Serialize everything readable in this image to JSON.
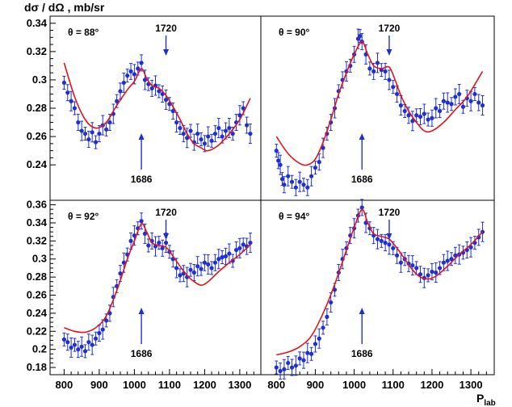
{
  "ylabel": "dσ / dΩ , mb/sr",
  "xlabel_main": "P",
  "xlabel_sub": "lab",
  "colors": {
    "data": "#1f2fd6",
    "fit": "#e0141a",
    "arrow": "#1f2fd6",
    "frame": "#000000"
  },
  "chart_data": [
    {
      "type": "scatter",
      "title": "θ = 88°",
      "xlim": [
        760,
        1360
      ],
      "ylim": [
        0.215,
        0.345
      ],
      "yticks": [
        0.24,
        0.26,
        0.28,
        0.3,
        0.32,
        0.34
      ],
      "ytick_labels": [
        "0.24",
        "0.26",
        "0.28",
        "0.3",
        "0.32",
        "0.34"
      ],
      "xticks": [],
      "xtick_labels": [],
      "annotations": [
        {
          "text": "1720",
          "x": 1090,
          "direction": "down"
        },
        {
          "text": "1686",
          "x": 1020,
          "direction": "up"
        }
      ],
      "fit_points": [
        [
          800,
          0.312
        ],
        [
          830,
          0.288
        ],
        [
          860,
          0.272
        ],
        [
          890,
          0.266
        ],
        [
          920,
          0.27
        ],
        [
          950,
          0.282
        ],
        [
          980,
          0.293
        ],
        [
          1000,
          0.299
        ],
        [
          1020,
          0.308
        ],
        [
          1035,
          0.301
        ],
        [
          1050,
          0.296
        ],
        [
          1070,
          0.294
        ],
        [
          1090,
          0.289
        ],
        [
          1110,
          0.281
        ],
        [
          1130,
          0.272
        ],
        [
          1150,
          0.262
        ],
        [
          1170,
          0.255
        ],
        [
          1190,
          0.252
        ],
        [
          1210,
          0.25
        ],
        [
          1240,
          0.254
        ],
        [
          1270,
          0.262
        ],
        [
          1300,
          0.272
        ],
        [
          1330,
          0.287
        ]
      ],
      "points": [
        [
          800,
          0.298
        ],
        [
          810,
          0.291
        ],
        [
          820,
          0.285
        ],
        [
          830,
          0.28
        ],
        [
          840,
          0.27
        ],
        [
          850,
          0.264
        ],
        [
          860,
          0.262
        ],
        [
          870,
          0.258
        ],
        [
          880,
          0.263
        ],
        [
          890,
          0.256
        ],
        [
          900,
          0.262
        ],
        [
          910,
          0.268
        ],
        [
          920,
          0.265
        ],
        [
          930,
          0.27
        ],
        [
          940,
          0.276
        ],
        [
          950,
          0.285
        ],
        [
          960,
          0.292
        ],
        [
          970,
          0.298
        ],
        [
          980,
          0.303
        ],
        [
          990,
          0.306
        ],
        [
          1000,
          0.304
        ],
        [
          1010,
          0.308
        ],
        [
          1020,
          0.312
        ],
        [
          1030,
          0.3
        ],
        [
          1040,
          0.297
        ],
        [
          1050,
          0.294
        ],
        [
          1060,
          0.296
        ],
        [
          1070,
          0.292
        ],
        [
          1080,
          0.29
        ],
        [
          1090,
          0.286
        ],
        [
          1100,
          0.283
        ],
        [
          1110,
          0.278
        ],
        [
          1120,
          0.27
        ],
        [
          1130,
          0.266
        ],
        [
          1140,
          0.262
        ],
        [
          1150,
          0.259
        ],
        [
          1160,
          0.264
        ],
        [
          1170,
          0.256
        ],
        [
          1180,
          0.262
        ],
        [
          1190,
          0.258
        ],
        [
          1200,
          0.255
        ],
        [
          1210,
          0.26
        ],
        [
          1220,
          0.257
        ],
        [
          1230,
          0.262
        ],
        [
          1240,
          0.266
        ],
        [
          1250,
          0.26
        ],
        [
          1260,
          0.264
        ],
        [
          1270,
          0.266
        ],
        [
          1280,
          0.262
        ],
        [
          1290,
          0.27
        ],
        [
          1300,
          0.275
        ],
        [
          1310,
          0.28
        ],
        [
          1320,
          0.268
        ],
        [
          1330,
          0.262
        ]
      ]
    },
    {
      "type": "scatter",
      "title": "θ = 90°",
      "xlim": [
        760,
        1360
      ],
      "ylim": [
        0.215,
        0.345
      ],
      "yticks": [],
      "ytick_labels": [],
      "xticks": [],
      "xtick_labels": [],
      "annotations": [
        {
          "text": "1720",
          "x": 1090,
          "direction": "down"
        },
        {
          "text": "1686",
          "x": 1020,
          "direction": "up"
        }
      ],
      "fit_points": [
        [
          800,
          0.26
        ],
        [
          830,
          0.248
        ],
        [
          860,
          0.241
        ],
        [
          880,
          0.24
        ],
        [
          900,
          0.244
        ],
        [
          920,
          0.256
        ],
        [
          940,
          0.272
        ],
        [
          960,
          0.29
        ],
        [
          980,
          0.305
        ],
        [
          1000,
          0.318
        ],
        [
          1020,
          0.327
        ],
        [
          1035,
          0.318
        ],
        [
          1050,
          0.31
        ],
        [
          1070,
          0.308
        ],
        [
          1090,
          0.309
        ],
        [
          1105,
          0.3
        ],
        [
          1120,
          0.289
        ],
        [
          1140,
          0.278
        ],
        [
          1160,
          0.27
        ],
        [
          1180,
          0.264
        ],
        [
          1200,
          0.264
        ],
        [
          1230,
          0.27
        ],
        [
          1260,
          0.279
        ],
        [
          1290,
          0.288
        ],
        [
          1330,
          0.306
        ]
      ],
      "points": [
        [
          800,
          0.25
        ],
        [
          805,
          0.243
        ],
        [
          810,
          0.24
        ],
        [
          815,
          0.23
        ],
        [
          820,
          0.226
        ],
        [
          830,
          0.232
        ],
        [
          840,
          0.228
        ],
        [
          850,
          0.224
        ],
        [
          860,
          0.228
        ],
        [
          870,
          0.226
        ],
        [
          880,
          0.224
        ],
        [
          890,
          0.232
        ],
        [
          900,
          0.238
        ],
        [
          910,
          0.242
        ],
        [
          920,
          0.252
        ],
        [
          930,
          0.262
        ],
        [
          940,
          0.27
        ],
        [
          950,
          0.28
        ],
        [
          960,
          0.292
        ],
        [
          970,
          0.3
        ],
        [
          980,
          0.306
        ],
        [
          990,
          0.31
        ],
        [
          1000,
          0.318
        ],
        [
          1010,
          0.329
        ],
        [
          1015,
          0.331
        ],
        [
          1020,
          0.327
        ],
        [
          1030,
          0.318
        ],
        [
          1040,
          0.308
        ],
        [
          1050,
          0.306
        ],
        [
          1060,
          0.312
        ],
        [
          1070,
          0.307
        ],
        [
          1080,
          0.306
        ],
        [
          1090,
          0.3
        ],
        [
          1100,
          0.295
        ],
        [
          1110,
          0.29
        ],
        [
          1120,
          0.282
        ],
        [
          1130,
          0.278
        ],
        [
          1140,
          0.275
        ],
        [
          1150,
          0.271
        ],
        [
          1160,
          0.275
        ],
        [
          1170,
          0.274
        ],
        [
          1180,
          0.276
        ],
        [
          1190,
          0.272
        ],
        [
          1200,
          0.273
        ],
        [
          1210,
          0.28
        ],
        [
          1220,
          0.278
        ],
        [
          1230,
          0.285
        ],
        [
          1240,
          0.284
        ],
        [
          1250,
          0.283
        ],
        [
          1260,
          0.288
        ],
        [
          1270,
          0.29
        ],
        [
          1280,
          0.281
        ],
        [
          1290,
          0.287
        ],
        [
          1300,
          0.285
        ],
        [
          1310,
          0.29
        ],
        [
          1320,
          0.284
        ],
        [
          1330,
          0.282
        ]
      ]
    },
    {
      "type": "scatter",
      "title": "θ = 92°",
      "xlim": [
        760,
        1360
      ],
      "ylim": [
        0.172,
        0.365
      ],
      "yticks": [
        0.18,
        0.2,
        0.22,
        0.24,
        0.26,
        0.28,
        0.3,
        0.32,
        0.34,
        0.36
      ],
      "ytick_labels": [
        "0.18",
        "0.2",
        "0.22",
        "0.24",
        "0.26",
        "0.28",
        "0.3",
        "0.32",
        "0.34",
        "0.36"
      ],
      "xticks": [
        800,
        900,
        1000,
        1100,
        1200,
        1300
      ],
      "xtick_labels": [
        "800",
        "900",
        "1000",
        "1100",
        "1200",
        "1300"
      ],
      "annotations": [
        {
          "text": "1720",
          "x": 1090,
          "direction": "down"
        },
        {
          "text": "1686",
          "x": 1020,
          "direction": "up"
        }
      ],
      "fit_points": [
        [
          800,
          0.224
        ],
        [
          830,
          0.22
        ],
        [
          860,
          0.219
        ],
        [
          890,
          0.224
        ],
        [
          920,
          0.237
        ],
        [
          950,
          0.265
        ],
        [
          980,
          0.3
        ],
        [
          1000,
          0.32
        ],
        [
          1020,
          0.339
        ],
        [
          1035,
          0.33
        ],
        [
          1050,
          0.318
        ],
        [
          1070,
          0.315
        ],
        [
          1090,
          0.313
        ],
        [
          1110,
          0.303
        ],
        [
          1130,
          0.292
        ],
        [
          1150,
          0.282
        ],
        [
          1170,
          0.275
        ],
        [
          1190,
          0.271
        ],
        [
          1210,
          0.275
        ],
        [
          1240,
          0.286
        ],
        [
          1270,
          0.296
        ],
        [
          1300,
          0.305
        ],
        [
          1330,
          0.316
        ]
      ],
      "points": [
        [
          800,
          0.211
        ],
        [
          810,
          0.208
        ],
        [
          820,
          0.202
        ],
        [
          830,
          0.205
        ],
        [
          840,
          0.2
        ],
        [
          850,
          0.203
        ],
        [
          860,
          0.198
        ],
        [
          870,
          0.208
        ],
        [
          880,
          0.205
        ],
        [
          890,
          0.212
        ],
        [
          900,
          0.218
        ],
        [
          910,
          0.222
        ],
        [
          920,
          0.232
        ],
        [
          930,
          0.24
        ],
        [
          940,
          0.258
        ],
        [
          950,
          0.27
        ],
        [
          960,
          0.284
        ],
        [
          970,
          0.296
        ],
        [
          980,
          0.305
        ],
        [
          990,
          0.32
        ],
        [
          1000,
          0.326
        ],
        [
          1010,
          0.334
        ],
        [
          1020,
          0.342
        ],
        [
          1030,
          0.328
        ],
        [
          1040,
          0.315
        ],
        [
          1050,
          0.32
        ],
        [
          1060,
          0.314
        ],
        [
          1070,
          0.318
        ],
        [
          1080,
          0.312
        ],
        [
          1090,
          0.318
        ],
        [
          1100,
          0.308
        ],
        [
          1110,
          0.3
        ],
        [
          1120,
          0.29
        ],
        [
          1130,
          0.282
        ],
        [
          1140,
          0.284
        ],
        [
          1150,
          0.28
        ],
        [
          1160,
          0.288
        ],
        [
          1170,
          0.285
        ],
        [
          1180,
          0.292
        ],
        [
          1190,
          0.289
        ],
        [
          1200,
          0.296
        ],
        [
          1210,
          0.294
        ],
        [
          1220,
          0.29
        ],
        [
          1230,
          0.296
        ],
        [
          1240,
          0.3
        ],
        [
          1250,
          0.302
        ],
        [
          1260,
          0.303
        ],
        [
          1270,
          0.306
        ],
        [
          1280,
          0.298
        ],
        [
          1290,
          0.31
        ],
        [
          1300,
          0.312
        ],
        [
          1310,
          0.316
        ],
        [
          1320,
          0.314
        ],
        [
          1330,
          0.318
        ]
      ]
    },
    {
      "type": "scatter",
      "title": "θ = 94°",
      "xlim": [
        760,
        1360
      ],
      "ylim": [
        0.172,
        0.365
      ],
      "yticks": [],
      "ytick_labels": [],
      "xticks": [
        800,
        900,
        1000,
        1100,
        1200,
        1300
      ],
      "xtick_labels": [
        "800",
        "900",
        "1000",
        "1100",
        "1200",
        "1300"
      ],
      "annotations": [
        {
          "text": "1720",
          "x": 1090,
          "direction": "down"
        },
        {
          "text": "1686",
          "x": 1020,
          "direction": "up"
        }
      ],
      "fit_points": [
        [
          800,
          0.194
        ],
        [
          830,
          0.197
        ],
        [
          860,
          0.203
        ],
        [
          890,
          0.215
        ],
        [
          920,
          0.24
        ],
        [
          950,
          0.272
        ],
        [
          980,
          0.31
        ],
        [
          1000,
          0.335
        ],
        [
          1020,
          0.355
        ],
        [
          1035,
          0.34
        ],
        [
          1050,
          0.328
        ],
        [
          1070,
          0.325
        ],
        [
          1090,
          0.322
        ],
        [
          1110,
          0.312
        ],
        [
          1130,
          0.3
        ],
        [
          1150,
          0.288
        ],
        [
          1170,
          0.28
        ],
        [
          1190,
          0.278
        ],
        [
          1210,
          0.281
        ],
        [
          1240,
          0.292
        ],
        [
          1270,
          0.305
        ],
        [
          1300,
          0.316
        ],
        [
          1330,
          0.33
        ]
      ],
      "points": [
        [
          800,
          0.18
        ],
        [
          810,
          0.176
        ],
        [
          820,
          0.178
        ],
        [
          830,
          0.185
        ],
        [
          840,
          0.18
        ],
        [
          850,
          0.182
        ],
        [
          860,
          0.19
        ],
        [
          870,
          0.188
        ],
        [
          880,
          0.196
        ],
        [
          890,
          0.195
        ],
        [
          900,
          0.206
        ],
        [
          910,
          0.212
        ],
        [
          920,
          0.224
        ],
        [
          930,
          0.236
        ],
        [
          940,
          0.252
        ],
        [
          950,
          0.266
        ],
        [
          960,
          0.285
        ],
        [
          970,
          0.3
        ],
        [
          980,
          0.312
        ],
        [
          990,
          0.326
        ],
        [
          1000,
          0.334
        ],
        [
          1010,
          0.348
        ],
        [
          1020,
          0.357
        ],
        [
          1030,
          0.34
        ],
        [
          1040,
          0.334
        ],
        [
          1050,
          0.326
        ],
        [
          1060,
          0.322
        ],
        [
          1070,
          0.32
        ],
        [
          1080,
          0.318
        ],
        [
          1090,
          0.316
        ],
        [
          1100,
          0.312
        ],
        [
          1110,
          0.304
        ],
        [
          1120,
          0.296
        ],
        [
          1130,
          0.3
        ],
        [
          1140,
          0.295
        ],
        [
          1150,
          0.293
        ],
        [
          1160,
          0.29
        ],
        [
          1170,
          0.283
        ],
        [
          1180,
          0.279
        ],
        [
          1190,
          0.282
        ],
        [
          1200,
          0.286
        ],
        [
          1210,
          0.285
        ],
        [
          1220,
          0.29
        ],
        [
          1230,
          0.296
        ],
        [
          1240,
          0.298
        ],
        [
          1250,
          0.3
        ],
        [
          1260,
          0.304
        ],
        [
          1270,
          0.305
        ],
        [
          1280,
          0.307
        ],
        [
          1290,
          0.31
        ],
        [
          1300,
          0.313
        ],
        [
          1310,
          0.318
        ],
        [
          1320,
          0.324
        ],
        [
          1330,
          0.33
        ]
      ]
    }
  ]
}
